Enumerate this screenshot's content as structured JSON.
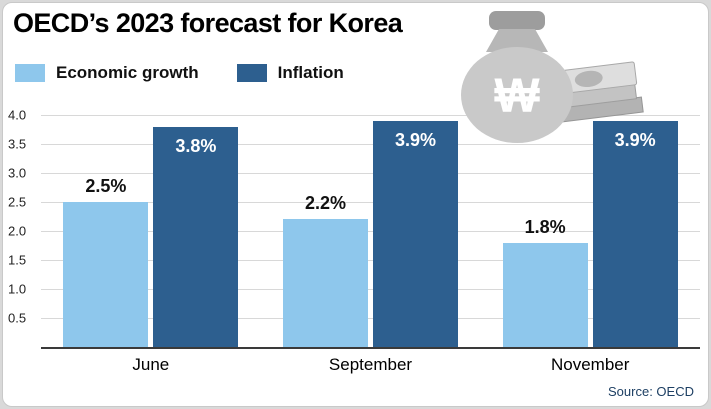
{
  "header": {
    "title": "OECD’s 2023 forecast for Korea"
  },
  "footer": {
    "source": "Source: OECD"
  },
  "decoration": {
    "money_bag_icon": "won-money-bag",
    "banknotes_icon": "banknote-stack",
    "won_symbol": "₩"
  },
  "colors": {
    "economic_growth": "#8ec7ec",
    "inflation": "#2d5f8f",
    "background": "#ffffff",
    "frame": "#d9d9d9"
  },
  "chart_data": {
    "type": "bar",
    "title": "OECD’s 2023 forecast for Korea",
    "categories": [
      "June",
      "September",
      "November"
    ],
    "series": [
      {
        "name": "Economic growth",
        "values": [
          2.5,
          2.2,
          1.8
        ],
        "labels": [
          "2.5%",
          "2.2%",
          "1.8%"
        ],
        "color": "#8ec7ec",
        "label_position": "above",
        "label_color": "#111111"
      },
      {
        "name": "Inflation",
        "values": [
          3.8,
          3.9,
          3.9
        ],
        "labels": [
          "3.8%",
          "3.9%",
          "3.9%"
        ],
        "color": "#2d5f8f",
        "label_position": "inside",
        "label_color": "#ffffff"
      }
    ],
    "xlabel": "",
    "ylabel": "",
    "ylim": [
      0,
      4.0
    ],
    "yticks": [
      "4.0",
      "3.5",
      "3.0",
      "2.5",
      "2.0",
      "1.5",
      "1.0",
      "0.5"
    ],
    "grid": true,
    "legend_position": "top-left"
  }
}
